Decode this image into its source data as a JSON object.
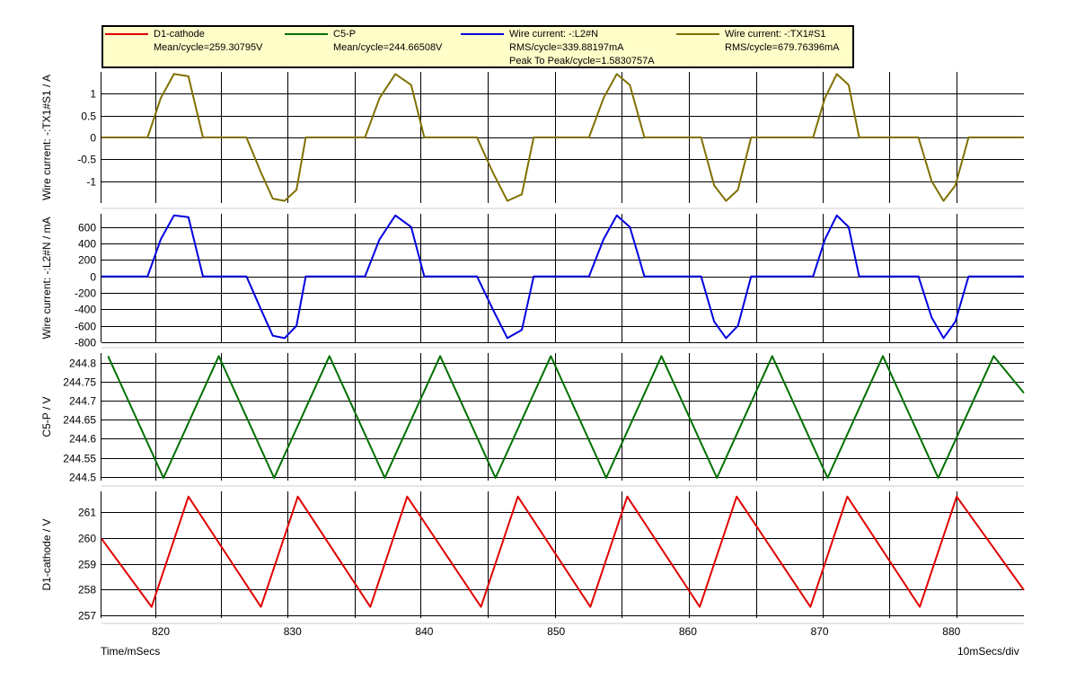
{
  "legend": [
    {
      "name": "D1-cathode",
      "color": "#e00000",
      "stats": [
        "Mean/cycle=259.30795V"
      ]
    },
    {
      "name": "C5-P",
      "color": "#007000",
      "stats": [
        "Mean/cycle=244.66508V"
      ]
    },
    {
      "name": "Wire current: -:L2#N",
      "color": "#0000e0",
      "stats": [
        "RMS/cycle=339.88197mA",
        "Peak To Peak/cycle=1.5830757A"
      ]
    },
    {
      "name": "Wire current: -:TX1#S1",
      "color": "#807000",
      "stats": [
        "RMS/cycle=679.76396mA"
      ]
    }
  ],
  "footer": {
    "x_label": "Time/mSecs",
    "x_scale": "10mSecs/div"
  },
  "chart_data": [
    {
      "type": "line",
      "ylabel": "Wire current: -:TX1#S1 / A",
      "color": "#807000",
      "xlim": [
        815.5,
        885.5
      ],
      "ylim": [
        -1.5,
        1.5
      ],
      "yticks": [
        1,
        0.5,
        0,
        -0.5,
        -1
      ],
      "ytick_labels": [
        "1",
        "0.5",
        "0",
        "-0.5",
        "-1"
      ],
      "waveform": "half-sine current pulses: +1.5 A peak near 821, 837.8, 854.5, 871.2 ms; -1.5 A peak near 829.4, 846, 862.7, 879.4 ms; about 6 ms wide, 0 A between pulses",
      "x": [
        815.5,
        819.0,
        820.0,
        821.0,
        822.1,
        823.2,
        826.5,
        827.6,
        828.5,
        829.4,
        830.3,
        831.0,
        835.5,
        836.6,
        837.8,
        839.0,
        840.0,
        844.0,
        845.2,
        846.3,
        847.4,
        848.3,
        852.5,
        853.6,
        854.6,
        855.6,
        856.7,
        861.0,
        862.0,
        862.9,
        863.8,
        864.8,
        869.5,
        870.4,
        871.3,
        872.2,
        873.0,
        877.5,
        878.5,
        879.4,
        880.3,
        881.3,
        885.5
      ],
      "y": [
        0,
        0,
        0.9,
        1.45,
        1.4,
        0,
        0,
        -0.8,
        -1.4,
        -1.45,
        -1.2,
        0,
        0,
        0.9,
        1.45,
        1.2,
        0,
        0,
        -0.8,
        -1.45,
        -1.3,
        0,
        0,
        0.9,
        1.45,
        1.2,
        0,
        0,
        -1.1,
        -1.45,
        -1.2,
        0,
        0,
        0.9,
        1.45,
        1.2,
        0,
        0,
        -1.0,
        -1.45,
        -1.1,
        0,
        0
      ]
    },
    {
      "type": "line",
      "ylabel": "Wire current: -:L2#N / mA",
      "color": "#0000e0",
      "xlim": [
        815.5,
        885.5
      ],
      "ylim": [
        -800,
        760
      ],
      "yticks": [
        600,
        400,
        200,
        0,
        -200,
        -400,
        -600,
        -800
      ],
      "ytick_labels": [
        "600",
        "400",
        "200",
        "0",
        "-200",
        "-400",
        "-600",
        "-800"
      ],
      "waveform": "half-sine current pulses: +740 mA peak near 821, 837.8, 854.5, 871.2 ms; -750 mA peak near 829.4, 846, 862.7, 879.4 ms; about 6 ms wide, 0 mA between pulses",
      "x": [
        815.5,
        819.0,
        820.0,
        821.0,
        822.1,
        823.2,
        826.5,
        827.6,
        828.5,
        829.4,
        830.3,
        831.0,
        835.5,
        836.6,
        837.8,
        839.0,
        840.0,
        844.0,
        845.2,
        846.3,
        847.4,
        848.3,
        852.5,
        853.6,
        854.6,
        855.6,
        856.7,
        861.0,
        862.0,
        862.9,
        863.8,
        864.8,
        869.5,
        870.4,
        871.3,
        872.2,
        873.0,
        877.5,
        878.5,
        879.4,
        880.3,
        881.3,
        885.5
      ],
      "y": [
        0,
        0,
        450,
        740,
        720,
        0,
        0,
        -400,
        -720,
        -750,
        -600,
        0,
        0,
        450,
        740,
        600,
        0,
        0,
        -400,
        -750,
        -650,
        0,
        0,
        450,
        740,
        600,
        0,
        0,
        -550,
        -750,
        -600,
        0,
        0,
        450,
        740,
        600,
        0,
        0,
        -500,
        -750,
        -550,
        0,
        0
      ]
    },
    {
      "type": "line",
      "ylabel": "C5-P / V",
      "color": "#007000",
      "xlim": [
        815.5,
        885.5
      ],
      "ylim": [
        244.49,
        244.825
      ],
      "yticks": [
        244.8,
        244.75,
        244.7,
        244.65,
        244.6,
        244.55,
        244.5
      ],
      "ytick_labels": [
        "244.8",
        "244.75",
        "244.7",
        "244.65",
        "244.6",
        "244.55",
        "244.5"
      ],
      "waveform": "sinusoidal ripple between 244.497 V and 244.817 V, period 8.33 ms",
      "x": [
        816.0,
        820.2,
        824.4,
        828.6,
        832.8,
        837.0,
        841.2,
        845.4,
        849.6,
        853.8,
        858.0,
        862.2,
        866.4,
        870.6,
        874.8,
        879.0,
        883.2,
        885.5
      ],
      "y": [
        244.817,
        244.497,
        244.817,
        244.497,
        244.817,
        244.497,
        244.817,
        244.497,
        244.817,
        244.497,
        244.817,
        244.497,
        244.817,
        244.497,
        244.817,
        244.497,
        244.817,
        244.72
      ]
    },
    {
      "type": "line",
      "ylabel": "D1-cathode / V",
      "color": "#e00000",
      "xlim": [
        815.5,
        885.5
      ],
      "ylim": [
        256.9,
        261.8
      ],
      "yticks": [
        261,
        260,
        259,
        258,
        257
      ],
      "ytick_labels": [
        "261",
        "260",
        "259",
        "258",
        "257"
      ],
      "xticks": [
        820,
        830,
        840,
        850,
        860,
        870,
        880
      ],
      "xtick_labels": [
        "820",
        "830",
        "840",
        "850",
        "860",
        "870",
        "880"
      ],
      "waveform": "sawtooth ripple: rises from about 257.3 V to 261.6 V in about 3 ms, then falls linearly, period 8.33 ms",
      "x": [
        815.5,
        819.3,
        822.1,
        827.6,
        830.4,
        835.9,
        838.7,
        844.3,
        847.1,
        852.6,
        855.4,
        860.9,
        863.7,
        869.3,
        872.1,
        877.6,
        880.4,
        885.5
      ],
      "y": [
        259.97,
        257.33,
        261.6,
        257.33,
        261.6,
        257.33,
        261.6,
        257.33,
        261.6,
        257.33,
        261.6,
        257.33,
        261.6,
        257.33,
        261.6,
        257.33,
        261.6,
        257.98
      ]
    }
  ]
}
